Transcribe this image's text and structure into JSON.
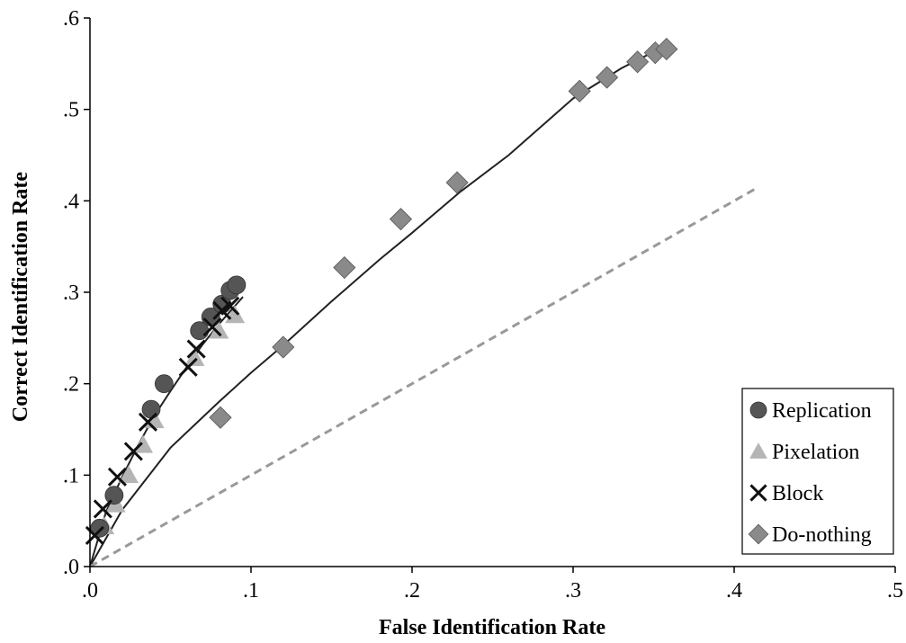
{
  "chart_data": {
    "type": "scatter",
    "xlabel": "False Identification Rate",
    "ylabel": "Correct Identification Rate",
    "xlim": [
      0,
      0.5
    ],
    "ylim": [
      0,
      0.6
    ],
    "xticks": [
      ".0",
      ".1",
      ".2",
      ".3",
      ".4",
      ".5"
    ],
    "yticks": [
      ".0",
      ".1",
      ".2",
      ".3",
      ".4",
      ".5",
      ".6"
    ],
    "grid": false,
    "legend_position": "bottom-right",
    "series": [
      {
        "name": "Replication",
        "marker": "circle",
        "color": "#555555",
        "x": [
          0.006,
          0.015,
          0.038,
          0.046,
          0.068,
          0.075,
          0.082,
          0.087,
          0.091
        ],
        "y": [
          0.042,
          0.078,
          0.172,
          0.2,
          0.258,
          0.273,
          0.287,
          0.302,
          0.308
        ]
      },
      {
        "name": "Pixelation",
        "marker": "triangle",
        "color": "#b5b5b5",
        "x": [
          0.009,
          0.016,
          0.024,
          0.033,
          0.04,
          0.065,
          0.08,
          0.09
        ],
        "y": [
          0.044,
          0.068,
          0.1,
          0.133,
          0.16,
          0.228,
          0.258,
          0.275
        ]
      },
      {
        "name": "Block",
        "marker": "x",
        "color": "#111111",
        "x": [
          0.003,
          0.008,
          0.017,
          0.027,
          0.036,
          0.061,
          0.066,
          0.076,
          0.082,
          0.087
        ],
        "y": [
          0.034,
          0.063,
          0.098,
          0.126,
          0.158,
          0.218,
          0.238,
          0.262,
          0.28,
          0.285
        ]
      },
      {
        "name": "Do-nothing",
        "marker": "diamond",
        "color": "#8a8a8a",
        "x": [
          0.081,
          0.12,
          0.158,
          0.193,
          0.228,
          0.304,
          0.321,
          0.34,
          0.351,
          0.358
        ],
        "y": [
          0.163,
          0.24,
          0.327,
          0.38,
          0.42,
          0.52,
          0.535,
          0.552,
          0.562,
          0.566
        ]
      }
    ],
    "lines": [
      {
        "kind": "fit",
        "style": "solid",
        "color": "#222222",
        "x": [
          0,
          0.01,
          0.02,
          0.03,
          0.04,
          0.05,
          0.06,
          0.07,
          0.08,
          0.09,
          0.095
        ],
        "y": [
          0,
          0.06,
          0.098,
          0.133,
          0.165,
          0.192,
          0.218,
          0.243,
          0.265,
          0.285,
          0.295
        ]
      },
      {
        "kind": "fit",
        "style": "solid",
        "color": "#222222",
        "x": [
          0,
          0.02,
          0.05,
          0.08,
          0.1,
          0.12,
          0.15,
          0.18,
          0.2,
          0.23,
          0.26,
          0.3,
          0.33,
          0.36
        ],
        "y": [
          0,
          0.062,
          0.13,
          0.18,
          0.212,
          0.242,
          0.29,
          0.336,
          0.365,
          0.41,
          0.45,
          0.512,
          0.545,
          0.572
        ]
      },
      {
        "kind": "chance",
        "style": "dashed",
        "color": "#999999",
        "x": [
          0,
          0.415
        ],
        "y": [
          0,
          0.415
        ]
      }
    ]
  }
}
